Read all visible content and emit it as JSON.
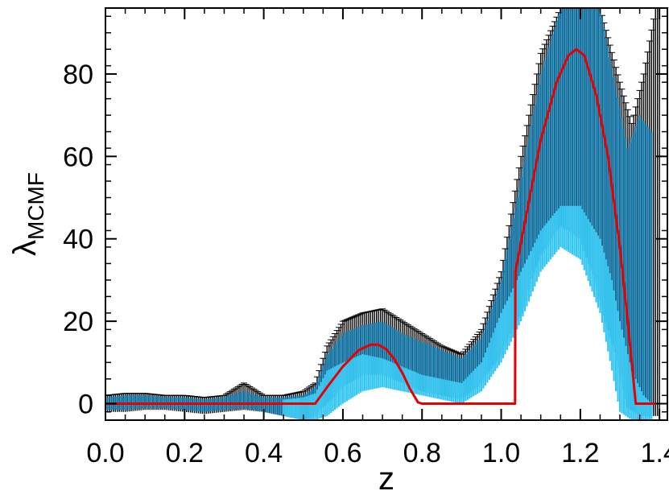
{
  "chart_data": {
    "type": "line",
    "xlabel": "z",
    "ylabel": "λ",
    "ylabel_subscript": "MCMF",
    "xlim": [
      0.0,
      1.42
    ],
    "ylim": [
      -4,
      96
    ],
    "xticks": [
      0.0,
      0.2,
      0.4,
      0.6,
      0.8,
      1.0,
      1.2,
      1.4
    ],
    "xtick_labels": [
      "0.0",
      "0.2",
      "0.4",
      "0.6",
      "0.8",
      "1.0",
      "1.2",
      "1.4"
    ],
    "yticks": [
      0,
      20,
      40,
      60,
      80
    ],
    "ytick_labels": [
      "0",
      "20",
      "40",
      "60",
      "80"
    ],
    "grid": false,
    "colors": {
      "errorbar_black": "#000000",
      "errorbar_dark_blue": "#0f6f9e",
      "errorbar_light_blue": "#33c6f2",
      "model_line": "#e60000"
    },
    "series": [
      {
        "role": "model",
        "x": [
          0.0,
          0.1,
          0.2,
          0.3,
          0.4,
          0.48,
          0.53,
          0.56,
          0.6,
          0.64,
          0.67,
          0.69,
          0.71,
          0.73,
          0.75,
          0.77,
          0.79,
          0.8,
          0.9,
          1.0,
          1.035,
          1.036,
          1.06,
          1.1,
          1.14,
          1.17,
          1.19,
          1.21,
          1.24,
          1.27,
          1.3,
          1.32,
          1.335,
          1.34,
          1.39
        ],
        "y": [
          0,
          0,
          0,
          0,
          0,
          0,
          0,
          4,
          9,
          13,
          14.3,
          14.3,
          13.2,
          10.8,
          7.5,
          3.5,
          0.3,
          0,
          0,
          0,
          0,
          32,
          44,
          64,
          78,
          84.5,
          86,
          84.5,
          75,
          60,
          38,
          20,
          5,
          0,
          0
        ]
      },
      {
        "role": "black_error_band",
        "x": [
          0.0,
          0.05,
          0.1,
          0.15,
          0.2,
          0.25,
          0.3,
          0.35,
          0.4,
          0.45,
          0.5,
          0.53,
          0.56,
          0.6,
          0.65,
          0.7,
          0.75,
          0.8,
          0.85,
          0.9,
          0.95,
          1.0,
          1.05,
          1.1,
          1.15,
          1.2,
          1.25,
          1.3,
          1.33,
          1.36,
          1.39,
          1.4
        ],
        "low": [
          -2,
          -2,
          -1.5,
          -1.5,
          -2,
          -2.5,
          -2,
          -1.5,
          -2,
          -3,
          -3,
          -2,
          1,
          6,
          9,
          9,
          6,
          4,
          3,
          2,
          6,
          14,
          26,
          42,
          50,
          45,
          28,
          8,
          -2,
          -3,
          -3,
          -3
        ],
        "high": [
          2,
          2.5,
          2.5,
          2,
          2,
          1.5,
          2,
          5,
          2,
          2,
          3,
          5,
          14,
          20,
          22,
          23,
          20,
          17,
          14,
          12,
          18,
          32,
          60,
          85,
          96,
          96,
          96,
          78,
          68,
          80,
          96,
          96
        ]
      },
      {
        "role": "dark_blue_error_band",
        "x": [
          0.0,
          0.05,
          0.1,
          0.15,
          0.2,
          0.25,
          0.3,
          0.35,
          0.4,
          0.45,
          0.5,
          0.53,
          0.56,
          0.6,
          0.65,
          0.7,
          0.75,
          0.8,
          0.85,
          0.9,
          0.95,
          1.0,
          1.05,
          1.1,
          1.15,
          1.2,
          1.25,
          1.3,
          1.32,
          1.35,
          1.38
        ],
        "low": [
          -1.5,
          -1.5,
          -1,
          -1,
          -1.5,
          -2,
          -1.5,
          -1,
          -2,
          -3,
          -4,
          -3,
          0,
          4,
          7,
          7,
          5,
          3,
          2,
          1,
          5,
          12,
          22,
          36,
          43,
          40,
          25,
          7,
          -1,
          -3,
          -3
        ],
        "high": [
          1.5,
          2,
          2,
          1.5,
          1.5,
          1,
          1.5,
          3,
          1.5,
          1.5,
          2,
          4,
          12,
          17,
          19,
          20,
          17,
          15,
          13,
          11,
          16,
          30,
          55,
          80,
          96,
          96,
          96,
          72,
          62,
          70,
          66
        ]
      },
      {
        "role": "light_blue_error_band",
        "x": [
          0.45,
          0.5,
          0.53,
          0.56,
          0.6,
          0.65,
          0.7,
          0.75,
          0.8,
          0.85,
          0.9,
          0.95,
          1.0,
          1.05,
          1.1,
          1.15,
          1.2,
          1.25,
          1.28,
          1.3,
          1.33,
          1.36,
          1.38
        ],
        "low": [
          -3,
          -4,
          -4,
          -3,
          0,
          3,
          4,
          3,
          2,
          1,
          0,
          3,
          10,
          20,
          32,
          38,
          35,
          22,
          8,
          -2,
          -4,
          -4,
          -4
        ],
        "high": [
          1,
          1.5,
          2.5,
          8,
          10,
          12,
          11,
          9,
          7,
          6,
          5,
          10,
          22,
          32,
          42,
          48,
          48,
          40,
          30,
          20,
          8,
          2,
          0
        ]
      }
    ]
  }
}
